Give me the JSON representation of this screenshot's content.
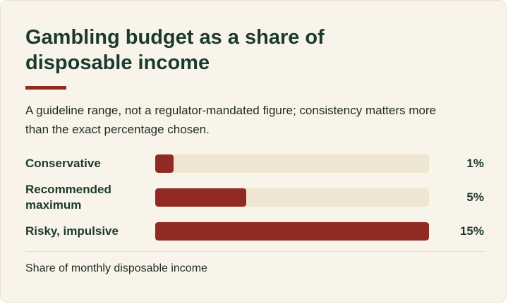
{
  "chart_data": {
    "type": "bar",
    "orientation": "horizontal",
    "title": "Gambling budget as a share of disposable income",
    "subtitle": "A guideline range, not a regulator-mandated figure; consistency matters more than the exact percentage chosen.",
    "categories": [
      "Conservative",
      "Recommended maximum",
      "Risky, impulsive"
    ],
    "values": [
      1,
      5,
      15
    ],
    "value_labels": [
      "1%",
      "5%",
      "15%"
    ],
    "unit": "%",
    "xlim": [
      0,
      15
    ],
    "xlabel": "Share of monthly disposable income",
    "bar_color": "#902a22",
    "track_color": "#efe5d3",
    "grid": false
  },
  "colors": {
    "accent": "#902a22",
    "heading": "#1b3a2e",
    "background": "#f9f4ea"
  }
}
